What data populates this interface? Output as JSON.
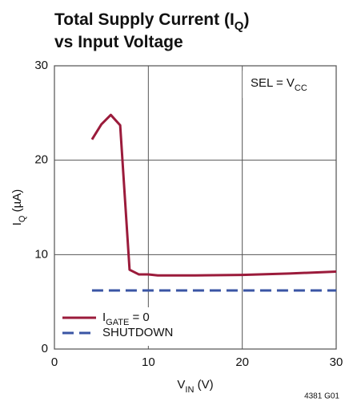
{
  "chart_data": {
    "type": "line",
    "title": [
      [
        {
          "text": "Total Supply Current (I"
        },
        {
          "text": "Q",
          "sub": true
        },
        {
          "text": ")"
        }
      ],
      [
        {
          "text": "vs Input Voltage"
        }
      ]
    ],
    "x_label": [
      {
        "text": "V"
      },
      {
        "text": "IN",
        "sub": true
      },
      {
        "text": " (V)"
      }
    ],
    "y_label": [
      {
        "text": "I"
      },
      {
        "text": "Q",
        "sub": true
      },
      {
        "text": " (µA)"
      }
    ],
    "annotation": [
      {
        "text": "SEL = V"
      },
      {
        "text": "CC",
        "sub": true
      }
    ],
    "footnote": "4381 G01",
    "xlim": [
      0,
      30
    ],
    "xticks": [
      0,
      10,
      20,
      30
    ],
    "ylim": [
      0,
      30
    ],
    "yticks": [
      0,
      10,
      20,
      30
    ],
    "grid": true,
    "legend": "lower left",
    "series": [
      {
        "name": [
          {
            "text": "I"
          },
          {
            "text": "GATE",
            "sub": true
          },
          {
            "text": " = 0"
          }
        ],
        "color": "#9b1b3b",
        "dash": false,
        "x": [
          4,
          5,
          6,
          7,
          8,
          9,
          10,
          11,
          15,
          20,
          25,
          30
        ],
        "values": [
          22.2,
          23.8,
          24.8,
          23.7,
          8.4,
          7.9,
          7.9,
          7.8,
          7.8,
          7.85,
          8.0,
          8.2
        ]
      },
      {
        "name": [
          {
            "text": "SHUTDOWN"
          }
        ],
        "color": "#3a55a4",
        "dash": true,
        "x": [
          4,
          30
        ],
        "values": [
          6.2,
          6.2
        ]
      }
    ]
  }
}
